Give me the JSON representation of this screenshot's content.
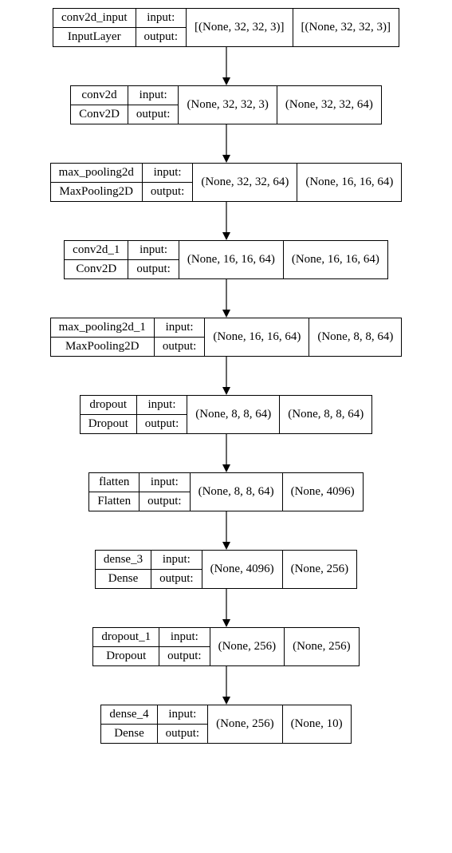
{
  "diagram": {
    "type": "flowchart",
    "background_color": "#ffffff",
    "border_color": "#000000",
    "font_family": "Times New Roman, serif",
    "font_size": 15,
    "arrow_color": "#000000",
    "io_labels": {
      "in": "input:",
      "out": "output:"
    },
    "nodes": [
      {
        "name": "conv2d_input",
        "type": "InputLayer",
        "input_shape": "[(None, 32, 32, 3)]",
        "output_shape": "[(None, 32, 32, 3)]"
      },
      {
        "name": "conv2d",
        "type": "Conv2D",
        "input_shape": "(None, 32, 32, 3)",
        "output_shape": "(None, 32, 32, 64)"
      },
      {
        "name": "max_pooling2d",
        "type": "MaxPooling2D",
        "input_shape": "(None, 32, 32, 64)",
        "output_shape": "(None, 16, 16, 64)"
      },
      {
        "name": "conv2d_1",
        "type": "Conv2D",
        "input_shape": "(None, 16, 16, 64)",
        "output_shape": "(None, 16, 16, 64)"
      },
      {
        "name": "max_pooling2d_1",
        "type": "MaxPooling2D",
        "input_shape": "(None, 16, 16, 64)",
        "output_shape": "(None, 8, 8, 64)"
      },
      {
        "name": "dropout",
        "type": "Dropout",
        "input_shape": "(None, 8, 8, 64)",
        "output_shape": "(None, 8, 8, 64)"
      },
      {
        "name": "flatten",
        "type": "Flatten",
        "input_shape": "(None, 8, 8, 64)",
        "output_shape": "(None, 4096)"
      },
      {
        "name": "dense_3",
        "type": "Dense",
        "input_shape": "(None, 4096)",
        "output_shape": "(None, 256)"
      },
      {
        "name": "dropout_1",
        "type": "Dropout",
        "input_shape": "(None, 256)",
        "output_shape": "(None, 256)"
      },
      {
        "name": "dense_4",
        "type": "Dense",
        "input_shape": "(None, 256)",
        "output_shape": "(None, 10)"
      }
    ]
  }
}
